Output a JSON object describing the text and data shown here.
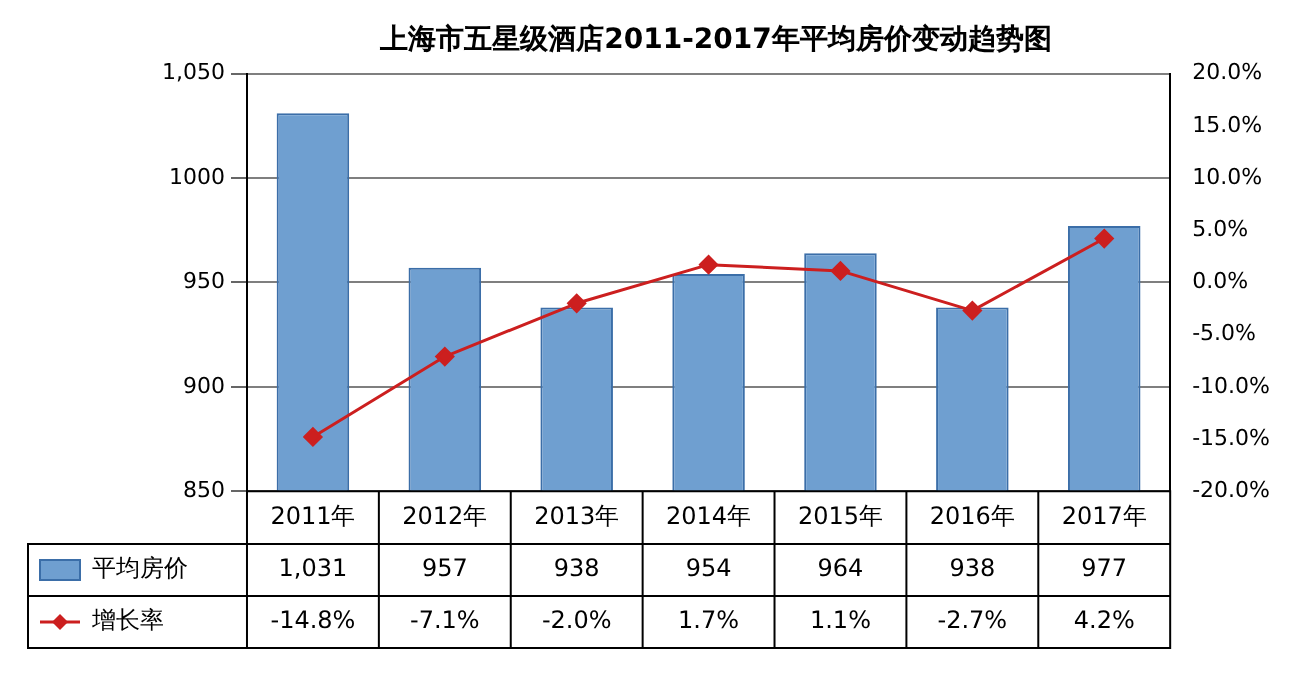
{
  "chart_data": {
    "type": "bar",
    "title": "上海市五星级酒店2011-2017年平均房价变动趋势图",
    "categories": [
      "2011年",
      "2012年",
      "2013年",
      "2014年",
      "2015年",
      "2016年",
      "2017年"
    ],
    "series": [
      {
        "name": "平均房价",
        "color": "#6f9fd0",
        "values": [
          1031,
          957,
          938,
          954,
          964,
          938,
          977
        ],
        "value_labels": [
          "1,031",
          "957",
          "938",
          "954",
          "964",
          "938",
          "977"
        ]
      },
      {
        "name": "增长率",
        "type": "line",
        "axis": "y2",
        "color": "#cc1f1f",
        "marker": "diamond",
        "values": [
          -14.8,
          -7.1,
          -2.0,
          1.7,
          1.1,
          -2.7,
          4.2
        ],
        "value_labels": [
          "-14.8%",
          "-7.1%",
          "-2.0%",
          "1.7%",
          "1.1%",
          "-2.7%",
          "4.2%"
        ]
      }
    ],
    "ylim": [
      850,
      1050
    ],
    "yticks": [
      850,
      900,
      950,
      1000,
      {
        "value": 1050,
        "label": "1,050"
      }
    ],
    "y2lim": [
      -20,
      20
    ],
    "y2ticks": [
      {
        "value": -20,
        "label": "-20.0%"
      },
      {
        "value": -15,
        "label": "-15.0%"
      },
      {
        "value": -10,
        "label": "-10.0%"
      },
      {
        "value": -5,
        "label": "-5.0%"
      },
      {
        "value": 0,
        "label": "0.0%"
      },
      {
        "value": 5,
        "label": "5.0%"
      },
      {
        "value": 10,
        "label": "10.0%"
      },
      {
        "value": 15,
        "label": "15.0%"
      },
      {
        "value": 20,
        "label": "20.0%"
      }
    ],
    "grid": "y",
    "legend": "bottom"
  }
}
